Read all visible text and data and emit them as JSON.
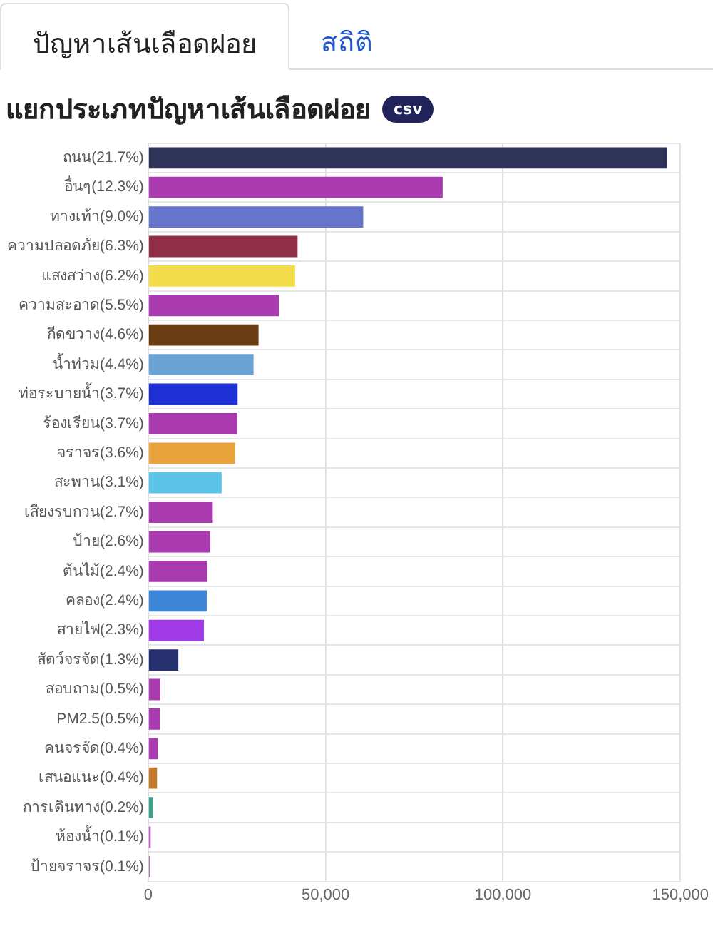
{
  "chart_data": {
    "type": "bar",
    "orientation": "horizontal",
    "title": "แยกประเภทปัญหาเส้นเลือดฝอย",
    "annotations": [
      "ปัญหาเส้นเลือดฝอย",
      "สถิติ",
      "csv"
    ],
    "categories": [
      "ถนน(21.7%)",
      "อื่นๆ(12.3%)",
      "ทางเท้า(9.0%)",
      "ความปลอดภัย(6.3%)",
      "แสงสว่าง(6.2%)",
      "ความสะอาด(5.5%)",
      "กีดขวาง(4.6%)",
      "น้ำท่วม(4.4%)",
      "ท่อระบายน้ำ(3.7%)",
      "ร้องเรียน(3.7%)",
      "จราจร(3.6%)",
      "สะพาน(3.1%)",
      "เสียงรบกวน(2.7%)",
      "ป้าย(2.6%)",
      "ต้นไม้(2.4%)",
      "คลอง(2.4%)",
      "สายไฟ(2.3%)",
      "สัตว์จรจัด(1.3%)",
      "สอบถาม(0.5%)",
      "PM2.5(0.5%)",
      "คนจรจัด(0.4%)",
      "เสนอแนะ(0.4%)",
      "การเดินทาง(0.2%)",
      "ห้องน้ำ(0.1%)",
      "ป้ายจราจร(0.1%)"
    ],
    "values": [
      146300,
      83000,
      60600,
      42100,
      41400,
      36800,
      31100,
      29700,
      25200,
      25100,
      24500,
      20700,
      18200,
      17500,
      16600,
      16500,
      15700,
      8500,
      3400,
      3300,
      2700,
      2500,
      1300,
      700,
      600
    ],
    "colors": [
      "#2e3458",
      "#a93ab0",
      "#6674cc",
      "#922f48",
      "#f2dc4a",
      "#a93ab0",
      "#6b3d12",
      "#6aa2d4",
      "#1f2fd6",
      "#a93ab0",
      "#e8a33c",
      "#5cc4e6",
      "#a93ab0",
      "#a93ab0",
      "#a93ab0",
      "#3d85d6",
      "#a03ae6",
      "#26306e",
      "#a93ab0",
      "#a93ab0",
      "#a93ab0",
      "#c47a2c",
      "#3aa08a",
      "#c060c0",
      "#a080a0"
    ],
    "xlim": [
      0,
      150000
    ],
    "xticks": [
      0,
      {
        "value": 50000,
        "label": "50,000"
      },
      {
        "value": 100000,
        "label": "100,000"
      },
      {
        "value": 150000,
        "label": "150,000"
      }
    ],
    "grid": true,
    "legend": false
  }
}
